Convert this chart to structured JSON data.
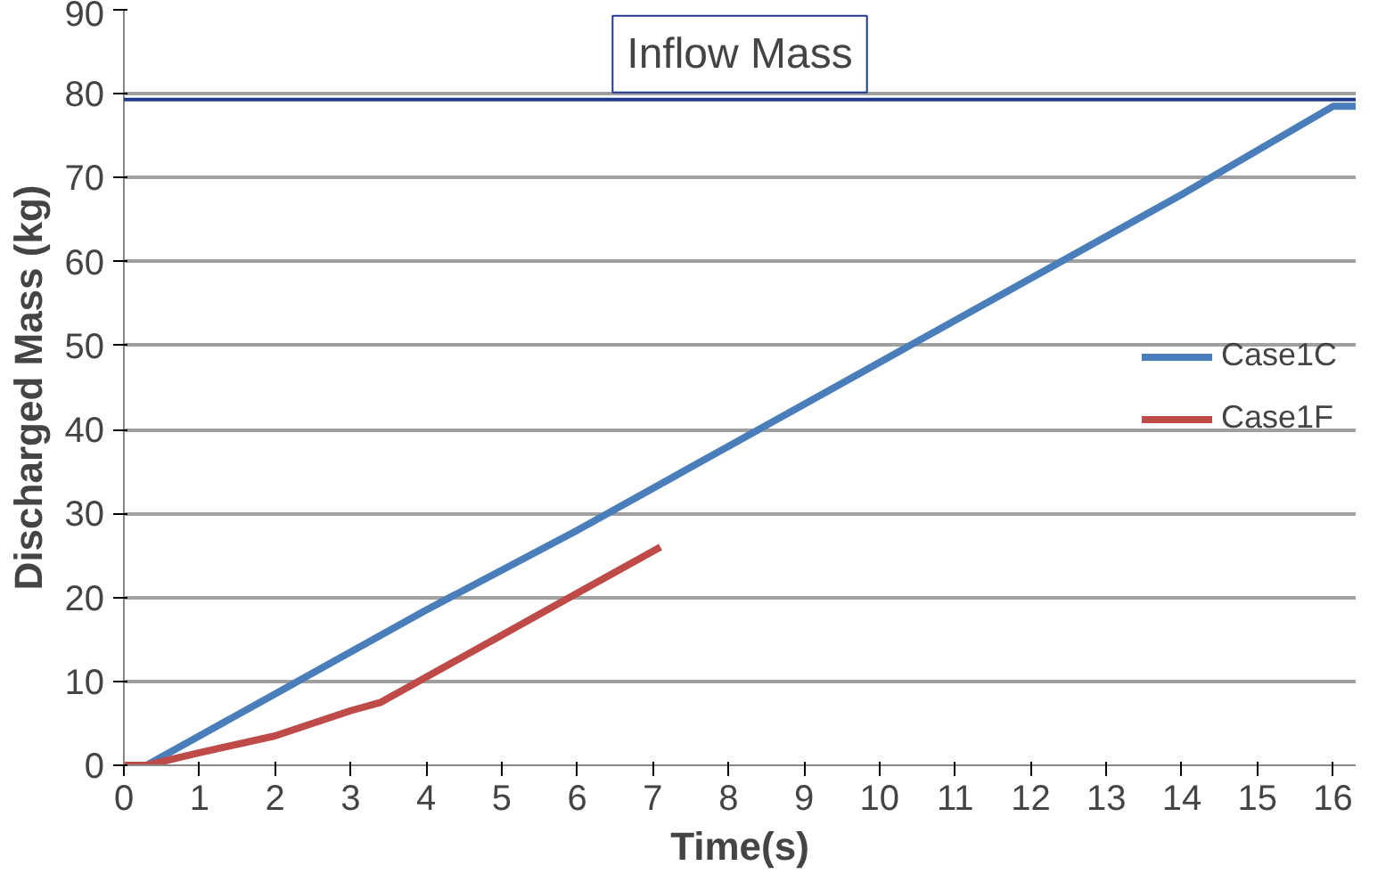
{
  "chart_data": {
    "type": "line",
    "xlabel": "Time(s)",
    "ylabel": "Discharged Mass (kg)",
    "xlim": [
      0,
      16.3
    ],
    "xticks": [
      0,
      1,
      2,
      3,
      4,
      5,
      6,
      7,
      8,
      9,
      10,
      11,
      12,
      13,
      14,
      15,
      16
    ],
    "ylim": [
      0,
      90
    ],
    "yticks": [
      0,
      10,
      20,
      30,
      40,
      50,
      60,
      70,
      80,
      90
    ],
    "grid": "y",
    "legend": "right",
    "ref_lines": [
      {
        "axis": "y",
        "value": 79.3,
        "label": "Inflow Mass",
        "color": "#1f3a8a"
      }
    ],
    "series": [
      {
        "name": "Case1C",
        "color": "#4a7ebb",
        "x": [
          0.3,
          0.5,
          1,
          2,
          4,
          6,
          8,
          10,
          12,
          14,
          16,
          16.3
        ],
        "values": [
          0,
          1,
          3.5,
          8.5,
          18.5,
          28,
          38,
          48,
          58,
          68,
          78.5,
          78.5
        ]
      },
      {
        "name": "Case1F",
        "color": "#be4b48",
        "x": [
          0,
          0.3,
          1,
          2,
          3,
          3.4,
          4,
          5,
          6,
          7,
          7.1
        ],
        "values": [
          0,
          0,
          1.5,
          3.5,
          6.5,
          7.5,
          10.5,
          15.5,
          20.5,
          25.5,
          26
        ]
      }
    ]
  }
}
